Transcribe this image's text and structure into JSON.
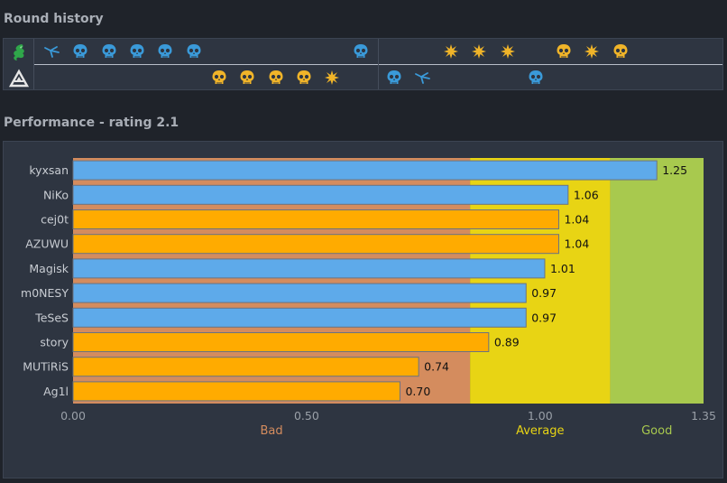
{
  "round_history": {
    "title": "Round history",
    "teams": [
      {
        "name": "team-top",
        "logo_icon": "dragon-logo-icon",
        "color": "#2fa64a"
      },
      {
        "name": "team-bottom",
        "logo_icon": "triangle-logo-icon",
        "color": "#e6e6e6"
      }
    ],
    "top_rounds": [
      {
        "slot": 1,
        "icon": "defuse-icon",
        "color": "#3a9ad9"
      },
      {
        "slot": 2,
        "icon": "skull-icon",
        "color": "#3a9ad9"
      },
      {
        "slot": 3,
        "icon": "skull-icon",
        "color": "#3a9ad9"
      },
      {
        "slot": 4,
        "icon": "skull-icon",
        "color": "#3a9ad9"
      },
      {
        "slot": 5,
        "icon": "skull-icon",
        "color": "#3a9ad9"
      },
      {
        "slot": 6,
        "icon": "skull-icon",
        "color": "#3a9ad9"
      },
      {
        "slot": 12,
        "icon": "skull-icon",
        "color": "#3a9ad9"
      },
      {
        "slot": 15,
        "icon": "explosion-icon",
        "color": "#f0b429"
      },
      {
        "slot": 16,
        "icon": "explosion-icon",
        "color": "#f0b429"
      },
      {
        "slot": 17,
        "icon": "explosion-icon",
        "color": "#f0b429"
      },
      {
        "slot": 19,
        "icon": "skull-icon",
        "color": "#f0b429"
      },
      {
        "slot": 20,
        "icon": "explosion-icon",
        "color": "#f0b429"
      },
      {
        "slot": 21,
        "icon": "skull-icon",
        "color": "#f0b429"
      }
    ],
    "bottom_rounds": [
      {
        "slot": 7,
        "icon": "skull-icon",
        "color": "#f0b429"
      },
      {
        "slot": 8,
        "icon": "skull-icon",
        "color": "#f0b429"
      },
      {
        "slot": 9,
        "icon": "skull-icon",
        "color": "#f0b429"
      },
      {
        "slot": 10,
        "icon": "skull-icon",
        "color": "#f0b429"
      },
      {
        "slot": 11,
        "icon": "explosion-icon",
        "color": "#f0b429"
      },
      {
        "slot": 13,
        "icon": "skull-icon",
        "color": "#3a9ad9"
      },
      {
        "slot": 14,
        "icon": "defuse-icon",
        "color": "#3a9ad9"
      },
      {
        "slot": 18,
        "icon": "skull-icon",
        "color": "#3a9ad9"
      }
    ]
  },
  "performance": {
    "title": "Performance - rating 2.1"
  },
  "chart_data": {
    "type": "bar",
    "orientation": "horizontal",
    "categories": [
      "kyxsan",
      "NiKo",
      "cej0t",
      "AZUWU",
      "Magisk",
      "m0NESY",
      "TeSeS",
      "story",
      "MUTiRiS",
      "Ag1l"
    ],
    "values": [
      1.25,
      1.06,
      1.04,
      1.04,
      1.01,
      0.97,
      0.97,
      0.89,
      0.74,
      0.7
    ],
    "value_labels": [
      "1.25",
      "1.06",
      "1.04",
      "1.04",
      "1.01",
      "0.97",
      "0.97",
      "0.89",
      "0.74",
      "0.70"
    ],
    "teams": [
      "blue",
      "blue",
      "orange",
      "orange",
      "blue",
      "blue",
      "blue",
      "orange",
      "orange",
      "orange"
    ],
    "team_colors": {
      "blue": "#5eaaea",
      "orange": "#ffab00"
    },
    "xlim": [
      0,
      1.35
    ],
    "xticks": [
      0,
      0.5,
      1.0,
      1.35
    ],
    "xtick_labels": [
      "0.00",
      "0.50",
      "1.00",
      "1.35"
    ],
    "bands": [
      {
        "label": "Bad",
        "from": 0,
        "to": 0.85,
        "color": "#d48c5e",
        "label_color": "#d48c5e",
        "label_at": 0.425
      },
      {
        "label": "Average",
        "from": 0.85,
        "to": 1.15,
        "color": "#e8d414",
        "label_color": "#e8d414",
        "label_at": 1.0
      },
      {
        "label": "Good",
        "from": 1.15,
        "to": 1.35,
        "color": "#a8c94e",
        "label_color": "#a8c94e",
        "label_at": 1.25
      }
    ]
  }
}
